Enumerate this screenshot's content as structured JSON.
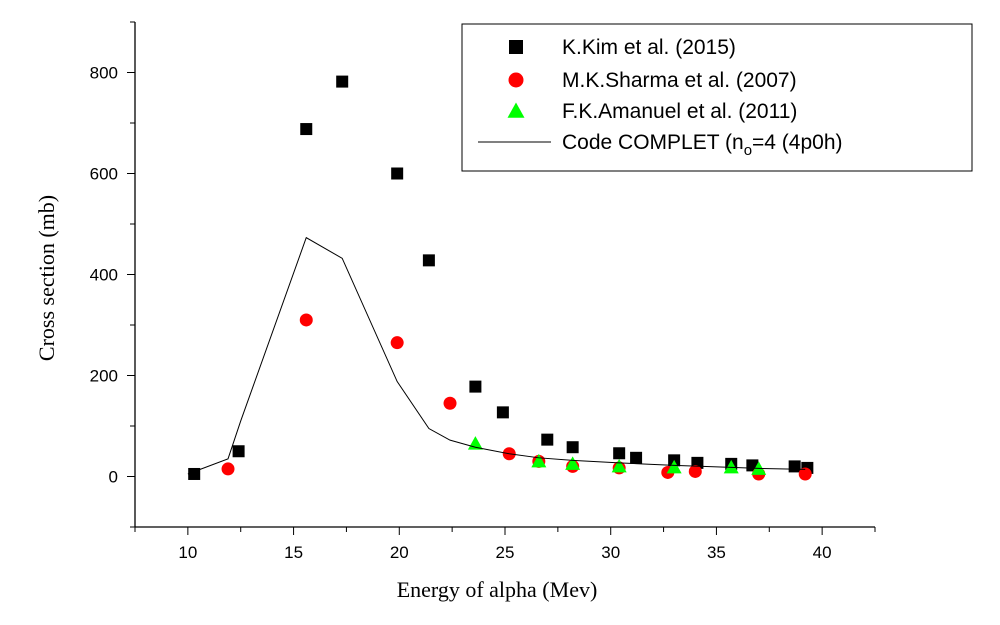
{
  "chart_data": {
    "type": "scatter",
    "xlabel": "Energy of alpha  (Mev)",
    "ylabel": "Cross section (mb)",
    "xlim": [
      7.5,
      42.5
    ],
    "ylim": [
      -100,
      900
    ],
    "xticks": [
      "10",
      "15",
      "20",
      "25",
      "30",
      "35",
      "40"
    ],
    "yticks": [
      "0",
      "200",
      "400",
      "600",
      "800"
    ],
    "xtick_values": [
      10,
      15,
      20,
      25,
      30,
      35,
      40
    ],
    "ytick_values": [
      0,
      200,
      400,
      600,
      800
    ],
    "legend_position": "top-right",
    "grid": false,
    "series": [
      {
        "name": "K.Kim et al. (2015)",
        "marker": "square",
        "color": "#000000",
        "x": [
          10.3,
          12.4,
          15.6,
          17.3,
          19.9,
          21.4,
          23.6,
          24.9,
          27.0,
          28.2,
          30.4,
          31.2,
          33.0,
          34.1,
          35.7,
          36.7,
          38.7,
          39.3
        ],
        "y": [
          5,
          50,
          688,
          782,
          600,
          428,
          178,
          127,
          73,
          58,
          46,
          37,
          32,
          27,
          25,
          22,
          20,
          17
        ]
      },
      {
        "name": "M.K.Sharma et al. (2007)",
        "marker": "circle",
        "color": "#ff0000",
        "x": [
          11.9,
          15.6,
          19.9,
          22.4,
          25.2,
          26.6,
          28.2,
          30.4,
          32.7,
          34.0,
          37.0,
          39.2
        ],
        "y": [
          15,
          310,
          265,
          145,
          45,
          30,
          20,
          17,
          8,
          10,
          5,
          5
        ]
      },
      {
        "name": "F.K.Amanuel et al. (2011)",
        "marker": "triangle",
        "color": "#00ff00",
        "x": [
          23.6,
          26.6,
          28.2,
          30.4,
          33.0,
          35.7,
          37.0
        ],
        "y": [
          65,
          30,
          25,
          20,
          18,
          18,
          15
        ]
      },
      {
        "name": "Code COMPLET",
        "legend_suffix": "=4 (4p0h)",
        "legend_sub": "o",
        "legend_prefix": "(n",
        "marker": "line",
        "color": "#000000",
        "x": [
          10.0,
          11.9,
          12.5,
          15.6,
          17.3,
          19.9,
          21.4,
          22.4,
          23.6,
          25.2,
          26.6,
          28.2,
          30.4,
          33.0,
          35.7,
          37.0,
          39.2
        ],
        "y": [
          5,
          35,
          110,
          473,
          432,
          188,
          95,
          72,
          58,
          45,
          37,
          32,
          27,
          22,
          18,
          16,
          14
        ]
      }
    ]
  }
}
